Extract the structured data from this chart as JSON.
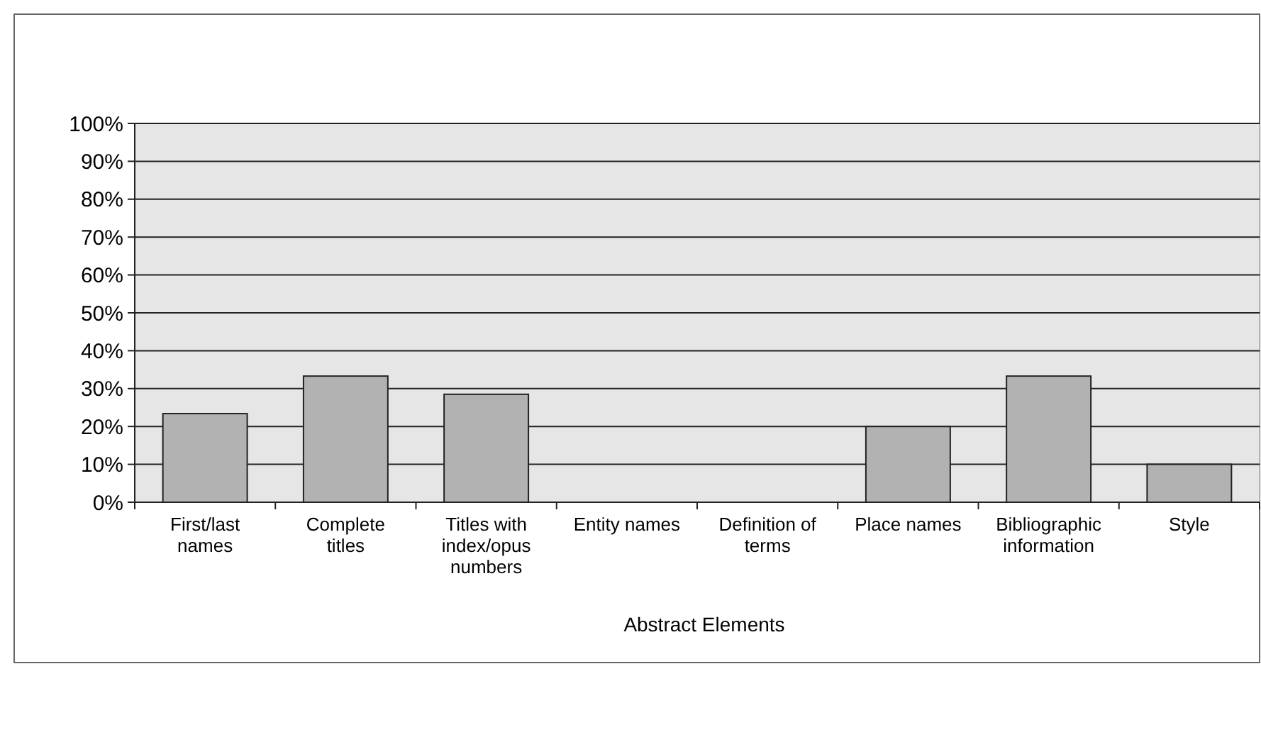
{
  "chart_data": {
    "type": "bar",
    "xlabel": "Abstract Elements",
    "categories": [
      "First/last names",
      "Complete titles",
      "Titles with index/opus numbers",
      "Entity names",
      "Definition of terms",
      "Place names",
      "Bibliographic information",
      "Style"
    ],
    "values": [
      23.4,
      33.3,
      28.5,
      0,
      0,
      20,
      33.3,
      10
    ],
    "color": "#b2b2b2",
    "ylim": [
      0,
      100
    ],
    "yticks": [
      {
        "value": 0,
        "label": "0%"
      },
      {
        "value": 10,
        "label": "10%"
      },
      {
        "value": 20,
        "label": "20%"
      },
      {
        "value": 30,
        "label": "30%"
      },
      {
        "value": 40,
        "label": "40%"
      },
      {
        "value": 50,
        "label": "50%"
      },
      {
        "value": 60,
        "label": "60%"
      },
      {
        "value": 70,
        "label": "70%"
      },
      {
        "value": 80,
        "label": "80%"
      },
      {
        "value": 90,
        "label": "90%"
      },
      {
        "value": 100,
        "label": "100%"
      }
    ],
    "grid": "y"
  }
}
